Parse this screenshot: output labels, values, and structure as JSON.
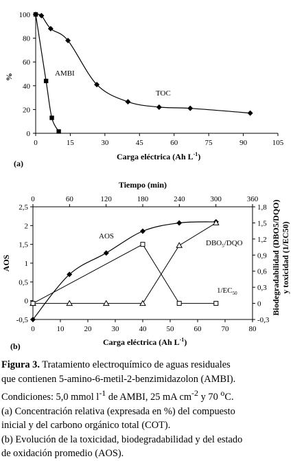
{
  "chart_data": [
    {
      "type": "line",
      "panel_label": "(a)",
      "ylabel": "%",
      "xlabel": "Carga eléctrica (Ah L",
      "xlabel_sup": "-1",
      "xlabel_end": ")",
      "xlim": [
        0,
        105
      ],
      "ylim": [
        0,
        100
      ],
      "xticks": [
        0,
        15,
        30,
        45,
        60,
        75,
        90,
        105
      ],
      "yticks": [
        0,
        20,
        40,
        60,
        80,
        100
      ],
      "series": [
        {
          "name": "AMBI",
          "marker": "square",
          "x": [
            0,
            4.5,
            7,
            10
          ],
          "y": [
            100,
            44,
            13,
            1.5
          ]
        },
        {
          "name": "TOC",
          "marker": "diamond",
          "x": [
            0,
            2.5,
            6.5,
            14,
            26.5,
            40,
            53.5,
            67,
            93
          ],
          "y": [
            100,
            99,
            88,
            78,
            41,
            26.5,
            22,
            21,
            17
          ]
        }
      ]
    },
    {
      "type": "line",
      "panel_label": "(b)",
      "ylabel": "AOS",
      "y2label_line1": "Biodegradabilidad (DBO5/DQO)",
      "y2label_line2": "y toxicidad (1/EC50)",
      "xlabel": "Carga eléctrica (Ah L",
      "xlabel_sup": "-1",
      "xlabel_end": ")",
      "x2label": "Tiempo (min)",
      "xlim": [
        0,
        80
      ],
      "x2lim": [
        0,
        360
      ],
      "ylim": [
        -0.5,
        2.5
      ],
      "y2lim": [
        -0.3,
        1.8
      ],
      "xticks": [
        0,
        10,
        20,
        30,
        40,
        50,
        60,
        70,
        80
      ],
      "x2ticks": [
        0,
        60,
        120,
        180,
        240,
        300,
        360
      ],
      "yticks": [
        "-0,5",
        "0",
        "0,5",
        "1",
        "1,5",
        "2",
        "2,5"
      ],
      "y2ticks": [
        "-0,3",
        "0",
        "0,3",
        "0,6",
        "0,9",
        "1,2",
        "1,5",
        "1,8"
      ],
      "series": [
        {
          "name": "AOS",
          "label": "AOS",
          "axis": "left",
          "marker": "diamond",
          "x": [
            0,
            13.3,
            26.7,
            40,
            53.3,
            66.7
          ],
          "y": [
            -0.5,
            0.7,
            1.27,
            1.85,
            2.07,
            2.1
          ]
        },
        {
          "name": "DBO5/DQO",
          "label": "DBO",
          "label_sub": "5",
          "label_end": "/DQO",
          "axis": "right",
          "marker": "triangle",
          "x": [
            0,
            13.3,
            26.7,
            40,
            53.3,
            66.7
          ],
          "y": [
            0,
            0,
            0,
            0,
            1.08,
            1.5
          ]
        },
        {
          "name": "1/EC50",
          "label": "1/EC",
          "label_sub": "50",
          "axis": "right",
          "marker": "open-square",
          "x": [
            0,
            40,
            53.3,
            66.7
          ],
          "y": [
            0,
            1.1,
            0,
            0
          ]
        }
      ]
    }
  ],
  "caption": {
    "label": "Figura 3.",
    "line1": " Tratamiento electroquímico de aguas residuales",
    "line2": "que contienen 5-amino-6-metil-2-benzimidazolon (AMBI).",
    "line3_a": "Condiciones: 5,0 mmol l",
    "line3_sup1": "-1",
    "line3_b": " de AMBI, 25 mA cm",
    "line3_sup2": "-2",
    "line3_c": "  y 70 ",
    "line3_sup3": "o",
    "line3_d": "C.",
    "line4": "(a) Concentración relativa (expresada en  %) del compuesto",
    "line5": "inicial y del carbono orgánico total (COT).",
    "line6": "(b) Evolución de la toxicidad, biodegradabilidad  y del estado",
    "line7": "de oxidación promedio (AOS)."
  }
}
